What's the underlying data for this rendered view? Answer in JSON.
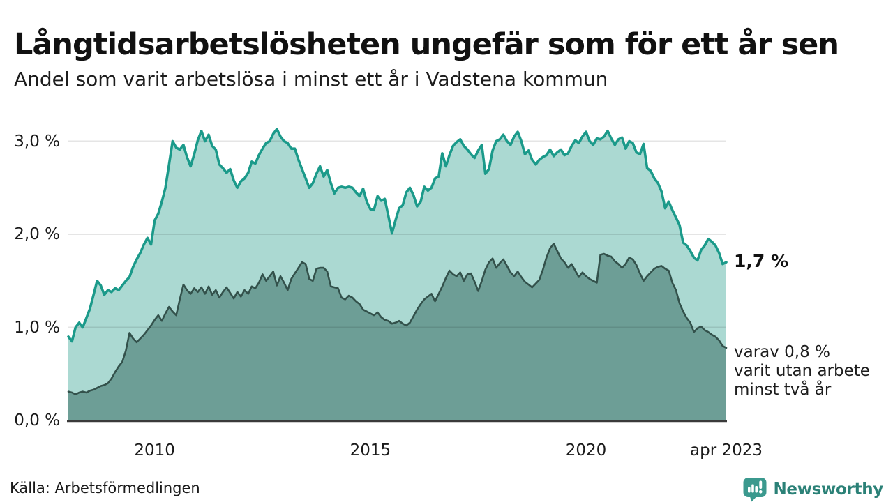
{
  "title": "Långtidsarbetslösheten ungefär som för ett år sen",
  "subtitle": "Andel som varit arbetslösa i minst ett år i Vadstena kommun",
  "source": "Källa: Arbetsförmedlingen",
  "brand": {
    "name": "Newsworthy",
    "text_color": "#2b8177",
    "icon_color": "#3b998e",
    "icon": "newsworthy-bubble-barchart-icon"
  },
  "annotations": {
    "total_end_label": "1,7 %",
    "note_lines": [
      "varav 0,8 %",
      "varit utan arbete",
      "minst två år"
    ]
  },
  "y_axis": {
    "unit": "%",
    "ticks": [
      {
        "value": 0,
        "label": "0,0 %"
      },
      {
        "value": 1,
        "label": "1,0 %"
      },
      {
        "value": 2,
        "label": "2,0 %"
      },
      {
        "value": 3,
        "label": "3,0 %"
      }
    ]
  },
  "x_axis": {
    "ticks": [
      {
        "month_index": 24,
        "label": "2010"
      },
      {
        "month_index": 84,
        "label": "2015"
      },
      {
        "month_index": 144,
        "label": "2020"
      },
      {
        "month_index": 183,
        "label": "apr 2023"
      }
    ]
  },
  "chart_data": {
    "type": "area",
    "title": "Långtidsarbetslösheten ungefär som för ett år sen",
    "subtitle": "Andel som varit arbetslösa i minst ett år i Vadstena kommun",
    "x_start": "2008-01",
    "x_end": "2023-04",
    "interval": "monthly",
    "unit": "percent",
    "ylim": [
      0,
      3.3
    ],
    "grid": "horizontal",
    "colors": {
      "axis": "#3a3a3a",
      "grid": "rgba(0,0,0,0.10)",
      "text": "#1a1a1a"
    },
    "series": [
      {
        "name": "Arbetslösa minst ett år",
        "end_value": 1.7,
        "line_color": "#1b9a8a",
        "fill_color": "#abd9d2",
        "values": [
          0.9,
          0.85,
          1.0,
          1.05,
          1.0,
          1.1,
          1.2,
          1.35,
          1.5,
          1.45,
          1.35,
          1.4,
          1.38,
          1.42,
          1.4,
          1.45,
          1.5,
          1.54,
          1.65,
          1.73,
          1.8,
          1.89,
          1.96,
          1.89,
          2.15,
          2.22,
          2.35,
          2.5,
          2.75,
          3.0,
          2.93,
          2.91,
          2.96,
          2.83,
          2.73,
          2.86,
          3.01,
          3.11,
          3.0,
          3.07,
          2.95,
          2.91,
          2.75,
          2.71,
          2.66,
          2.7,
          2.58,
          2.5,
          2.57,
          2.6,
          2.66,
          2.78,
          2.76,
          2.85,
          2.92,
          2.98,
          3.0,
          3.08,
          3.13,
          3.05,
          3.0,
          2.98,
          2.92,
          2.92,
          2.8,
          2.7,
          2.6,
          2.5,
          2.55,
          2.65,
          2.73,
          2.62,
          2.69,
          2.55,
          2.44,
          2.5,
          2.51,
          2.5,
          2.51,
          2.5,
          2.45,
          2.41,
          2.49,
          2.35,
          2.27,
          2.26,
          2.41,
          2.36,
          2.38,
          2.2,
          2.01,
          2.15,
          2.28,
          2.31,
          2.45,
          2.5,
          2.42,
          2.3,
          2.35,
          2.51,
          2.47,
          2.5,
          2.6,
          2.62,
          2.87,
          2.73,
          2.85,
          2.95,
          2.99,
          3.02,
          2.95,
          2.91,
          2.86,
          2.82,
          2.9,
          2.96,
          2.65,
          2.7,
          2.9,
          3.0,
          3.02,
          3.07,
          3.0,
          2.96,
          3.05,
          3.1,
          3.0,
          2.86,
          2.9,
          2.8,
          2.75,
          2.8,
          2.83,
          2.85,
          2.91,
          2.84,
          2.88,
          2.91,
          2.85,
          2.87,
          2.95,
          3.01,
          2.98,
          3.05,
          3.1,
          3.0,
          2.96,
          3.03,
          3.02,
          3.05,
          3.11,
          3.03,
          2.96,
          3.02,
          3.04,
          2.92,
          3.0,
          2.98,
          2.88,
          2.86,
          2.97,
          2.71,
          2.68,
          2.6,
          2.55,
          2.46,
          2.28,
          2.35,
          2.26,
          2.18,
          2.1,
          1.91,
          1.88,
          1.82,
          1.75,
          1.72,
          1.83,
          1.88,
          1.95,
          1.92,
          1.88,
          1.8,
          1.68,
          1.7
        ]
      },
      {
        "name": "varav utan arbete minst två år",
        "end_value": 0.8,
        "line_color": "#33514b",
        "fill_color": "#6d9e96",
        "values": [
          0.31,
          0.3,
          0.28,
          0.3,
          0.31,
          0.3,
          0.32,
          0.33,
          0.35,
          0.37,
          0.38,
          0.4,
          0.45,
          0.52,
          0.58,
          0.63,
          0.75,
          0.94,
          0.88,
          0.84,
          0.88,
          0.92,
          0.97,
          1.02,
          1.08,
          1.13,
          1.07,
          1.15,
          1.22,
          1.17,
          1.13,
          1.3,
          1.46,
          1.4,
          1.36,
          1.42,
          1.38,
          1.43,
          1.36,
          1.44,
          1.35,
          1.4,
          1.32,
          1.38,
          1.43,
          1.37,
          1.31,
          1.38,
          1.33,
          1.4,
          1.36,
          1.44,
          1.42,
          1.48,
          1.57,
          1.5,
          1.55,
          1.6,
          1.45,
          1.55,
          1.48,
          1.4,
          1.52,
          1.58,
          1.64,
          1.7,
          1.68,
          1.52,
          1.5,
          1.63,
          1.64,
          1.64,
          1.6,
          1.44,
          1.43,
          1.42,
          1.32,
          1.3,
          1.34,
          1.32,
          1.28,
          1.25,
          1.19,
          1.17,
          1.15,
          1.13,
          1.16,
          1.11,
          1.08,
          1.07,
          1.04,
          1.05,
          1.07,
          1.04,
          1.02,
          1.05,
          1.12,
          1.19,
          1.25,
          1.3,
          1.33,
          1.36,
          1.28,
          1.36,
          1.44,
          1.53,
          1.61,
          1.57,
          1.55,
          1.59,
          1.5,
          1.57,
          1.58,
          1.49,
          1.39,
          1.5,
          1.62,
          1.7,
          1.74,
          1.64,
          1.69,
          1.73,
          1.66,
          1.59,
          1.55,
          1.6,
          1.54,
          1.49,
          1.46,
          1.43,
          1.47,
          1.51,
          1.62,
          1.75,
          1.85,
          1.9,
          1.82,
          1.74,
          1.7,
          1.64,
          1.68,
          1.61,
          1.54,
          1.59,
          1.55,
          1.52,
          1.5,
          1.48,
          1.78,
          1.79,
          1.77,
          1.76,
          1.71,
          1.68,
          1.64,
          1.68,
          1.75,
          1.73,
          1.67,
          1.58,
          1.5,
          1.55,
          1.59,
          1.63,
          1.65,
          1.66,
          1.63,
          1.61,
          1.48,
          1.4,
          1.26,
          1.17,
          1.1,
          1.05,
          0.95,
          0.99,
          1.01,
          0.97,
          0.95,
          0.92,
          0.9,
          0.86,
          0.8,
          0.78
        ]
      }
    ]
  }
}
